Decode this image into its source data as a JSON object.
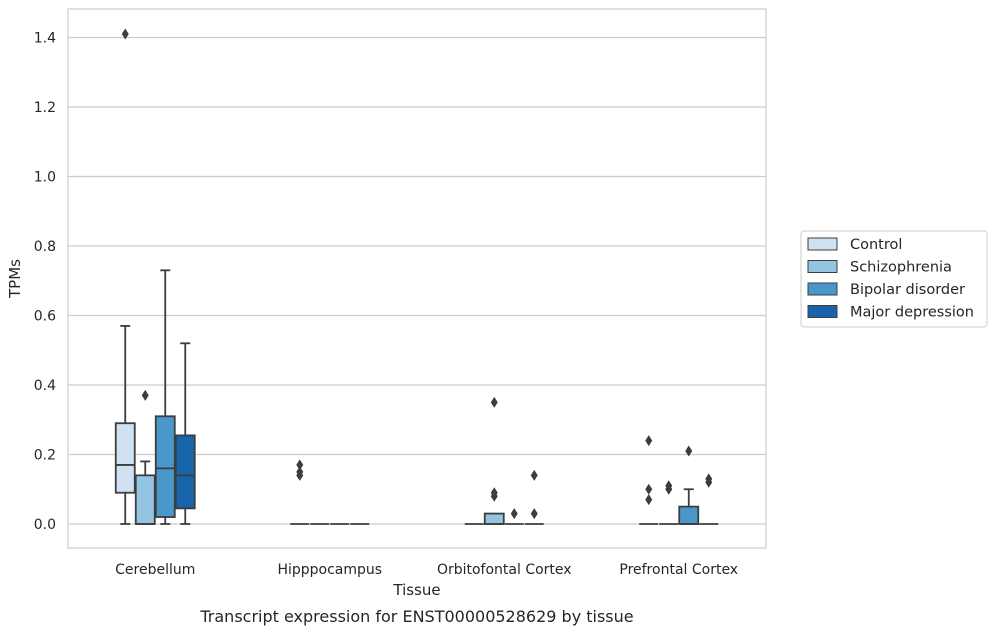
{
  "chart_data": {
    "type": "box",
    "xlabel": "Tissue",
    "ylabel": "TPMs",
    "caption": "Transcript expression for ENST00000528629 by tissue",
    "ylim": [
      -0.07,
      1.48
    ],
    "yticks": [
      0.0,
      0.2,
      0.4,
      0.6,
      0.8,
      1.0,
      1.2,
      1.4
    ],
    "ytick_labels": [
      "0.0",
      "0.2",
      "0.4",
      "0.6",
      "0.8",
      "1.0",
      "1.2",
      "1.4"
    ],
    "grid": "horizontal",
    "legend_position": "right",
    "categories": [
      "Cerebellum",
      "Hipppocampus",
      "Orbitofontal Cortex",
      "Prefrontal Cortex"
    ],
    "series": [
      {
        "name": "Control",
        "color": "#d0e1f2",
        "boxes": [
          {
            "whisker_low": 0.0,
            "q1": 0.09,
            "median": 0.17,
            "q3": 0.29,
            "whisker_high": 0.57,
            "outliers": [
              1.41
            ]
          },
          {
            "whisker_low": 0.0,
            "q1": 0.0,
            "median": 0.0,
            "q3": 0.0,
            "whisker_high": 0.0,
            "outliers": [
              0.14,
              0.15,
              0.17
            ]
          },
          {
            "whisker_low": 0.0,
            "q1": 0.0,
            "median": 0.0,
            "q3": 0.0,
            "whisker_high": 0.0,
            "outliers": []
          },
          {
            "whisker_low": 0.0,
            "q1": 0.0,
            "median": 0.0,
            "q3": 0.0,
            "whisker_high": 0.0,
            "outliers": [
              0.07,
              0.1,
              0.24
            ]
          }
        ]
      },
      {
        "name": "Schizophrenia",
        "color": "#94c4df",
        "boxes": [
          {
            "whisker_low": 0.0,
            "q1": 0.0,
            "median": 0.0,
            "q3": 0.14,
            "whisker_high": 0.18,
            "outliers": [
              0.37
            ]
          },
          {
            "whisker_low": 0.0,
            "q1": 0.0,
            "median": 0.0,
            "q3": 0.0,
            "whisker_high": 0.0,
            "outliers": []
          },
          {
            "whisker_low": 0.0,
            "q1": 0.0,
            "median": 0.0,
            "q3": 0.03,
            "whisker_high": 0.03,
            "outliers": [
              0.08,
              0.09,
              0.35
            ]
          },
          {
            "whisker_low": 0.0,
            "q1": 0.0,
            "median": 0.0,
            "q3": 0.0,
            "whisker_high": 0.0,
            "outliers": [
              0.1,
              0.11
            ]
          }
        ]
      },
      {
        "name": "Bipolar disorder",
        "color": "#4a98c9",
        "boxes": [
          {
            "whisker_low": 0.0,
            "q1": 0.02,
            "median": 0.16,
            "q3": 0.31,
            "whisker_high": 0.73,
            "outliers": []
          },
          {
            "whisker_low": 0.0,
            "q1": 0.0,
            "median": 0.0,
            "q3": 0.0,
            "whisker_high": 0.0,
            "outliers": []
          },
          {
            "whisker_low": 0.0,
            "q1": 0.0,
            "median": 0.0,
            "q3": 0.0,
            "whisker_high": 0.0,
            "outliers": [
              0.03
            ]
          },
          {
            "whisker_low": 0.0,
            "q1": 0.0,
            "median": 0.0,
            "q3": 0.05,
            "whisker_high": 0.1,
            "outliers": [
              0.21
            ]
          }
        ]
      },
      {
        "name": "Major depression",
        "color": "#1764ab",
        "boxes": [
          {
            "whisker_low": 0.0,
            "q1": 0.045,
            "median": 0.14,
            "q3": 0.255,
            "whisker_high": 0.52,
            "outliers": []
          },
          {
            "whisker_low": 0.0,
            "q1": 0.0,
            "median": 0.0,
            "q3": 0.0,
            "whisker_high": 0.0,
            "outliers": []
          },
          {
            "whisker_low": 0.0,
            "q1": 0.0,
            "median": 0.0,
            "q3": 0.0,
            "whisker_high": 0.0,
            "outliers": [
              0.03,
              0.14
            ]
          },
          {
            "whisker_low": 0.0,
            "q1": 0.0,
            "median": 0.0,
            "q3": 0.0,
            "whisker_high": 0.0,
            "outliers": [
              0.12,
              0.13
            ]
          }
        ]
      }
    ]
  }
}
